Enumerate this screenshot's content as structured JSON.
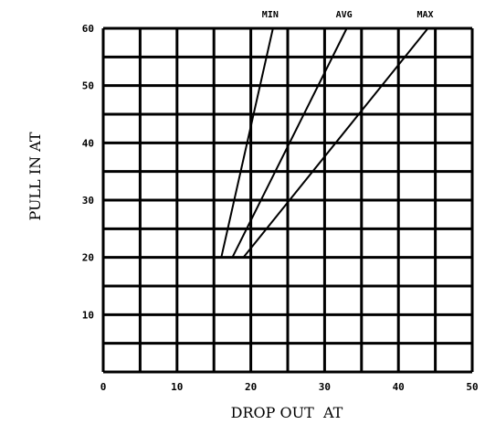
{
  "chart_data": {
    "type": "line",
    "xlabel": "DROP OUT  AT",
    "ylabel": "PULL IN AT",
    "xlim": [
      0,
      50
    ],
    "ylim": [
      0,
      60
    ],
    "xticks": [
      "0",
      "10",
      "20",
      "30",
      "40",
      "50"
    ],
    "yticks": [
      "10",
      "20",
      "30",
      "40",
      "50",
      "60"
    ],
    "grid": true,
    "grid_x_step": 5,
    "grid_y_step": 5,
    "series": [
      {
        "name": "MIN",
        "points": [
          [
            16,
            20
          ],
          [
            23,
            60
          ]
        ]
      },
      {
        "name": "AVG",
        "points": [
          [
            17.5,
            20
          ],
          [
            33,
            60
          ]
        ]
      },
      {
        "name": "MAX",
        "points": [
          [
            19,
            20
          ],
          [
            44,
            60
          ]
        ]
      }
    ]
  }
}
